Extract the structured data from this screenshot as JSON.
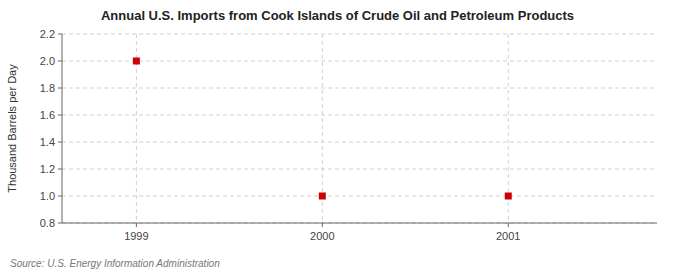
{
  "chart_data": {
    "type": "scatter",
    "title": "Annual U.S. Imports from Cook Islands of Crude Oil and Petroleum Products",
    "y_label": "Thousand Barrels per Day",
    "annotations": [
      "Source: U.S. Energy Information Administration"
    ],
    "x": [
      1999,
      2000,
      2001
    ],
    "values": [
      2.0,
      1.0,
      1.0
    ],
    "color": "#cc0000",
    "marker": "square",
    "xlim": [
      1998.6,
      2001.8
    ],
    "ylim": [
      0.8,
      2.2
    ],
    "xticks": [
      1999,
      2000,
      2001
    ],
    "yticks": [
      0.8,
      {
        "value": 1.0,
        "label": "1.0"
      },
      1.2,
      1.4,
      1.6,
      1.8,
      {
        "value": 2.0,
        "label": "2.0"
      },
      2.2
    ],
    "grid": true
  }
}
